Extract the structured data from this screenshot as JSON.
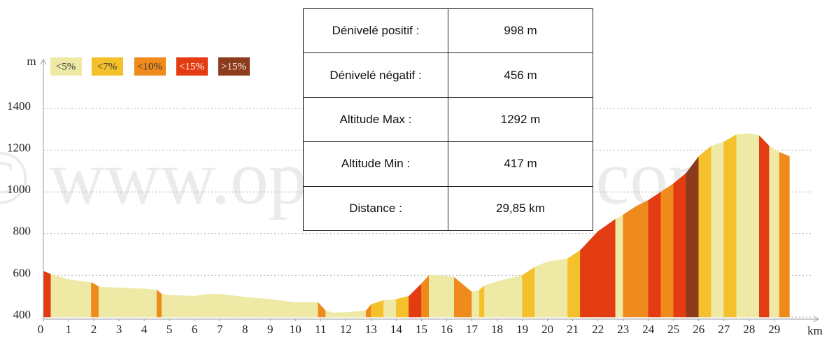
{
  "chart_data": {
    "type": "elevation_profile",
    "watermark": "© www.openrunner.com",
    "x_label": "km",
    "y_label": "m",
    "legend": [
      {
        "name": "<5%",
        "color": "#eeeaa6"
      },
      {
        "name": "<7%",
        "color": "#f4c02c"
      },
      {
        "name": "<10%",
        "color": "#ef8a1c"
      },
      {
        "name": "<15%",
        "color": "#e33b12"
      },
      {
        "name": ">15%",
        "color": "#8c3b1c"
      }
    ],
    "x": [
      0,
      0.3,
      1,
      1.9,
      2,
      2.2,
      3,
      4,
      4.5,
      4.7,
      5,
      6,
      6.5,
      7,
      8,
      9,
      10,
      10.9,
      11.2,
      11.5,
      12,
      12.8,
      13,
      13.5,
      14,
      14.5,
      15,
      15.3,
      15.8,
      16.3,
      16.7,
      17,
      17.3,
      17.5,
      18,
      18.5,
      19,
      19.5,
      20,
      20.8,
      21.3,
      22,
      22.7,
      23,
      23.5,
      24,
      24.5,
      25,
      25.5,
      26,
      26.5,
      27,
      27.5,
      28,
      28.4,
      28.8,
      29.2,
      29.6
    ],
    "elevation": [
      620,
      605,
      580,
      565,
      560,
      545,
      540,
      535,
      530,
      510,
      505,
      500,
      510,
      510,
      495,
      485,
      470,
      470,
      430,
      420,
      422,
      430,
      460,
      480,
      485,
      500,
      560,
      600,
      600,
      590,
      550,
      520,
      530,
      550,
      570,
      585,
      600,
      640,
      665,
      680,
      720,
      810,
      870,
      890,
      930,
      960,
      1000,
      1040,
      1090,
      1170,
      1220,
      1240,
      1275,
      1280,
      1270,
      1220,
      1190,
      1170
    ],
    "segment_grades": [
      3,
      0,
      0,
      2,
      2,
      0,
      0,
      0,
      2,
      0,
      0,
      0,
      0,
      0,
      0,
      0,
      0,
      2,
      0,
      0,
      0,
      2,
      1,
      0,
      1,
      3,
      2,
      0,
      0,
      2,
      2,
      0,
      1,
      0,
      0,
      0,
      1,
      0,
      0,
      1,
      3,
      3,
      0,
      2,
      2,
      3,
      2,
      3,
      4,
      1,
      0,
      1,
      0,
      0,
      3,
      0,
      2
    ],
    "xlim": [
      0,
      30.8
    ],
    "xticks": [
      0,
      1,
      2,
      3,
      4,
      5,
      6,
      7,
      8,
      9,
      10,
      11,
      12,
      13,
      14,
      15,
      16,
      17,
      18,
      19,
      20,
      21,
      22,
      23,
      24,
      25,
      26,
      27,
      28,
      29
    ],
    "ylim": [
      400,
      1635
    ],
    "yticks": [
      400,
      600,
      800,
      1000,
      1200,
      1400
    ],
    "grid": true,
    "stats": [
      [
        "Dénivelé positif :",
        "998 m"
      ],
      [
        "Dénivelé négatif :",
        "456 m"
      ],
      [
        "Altitude Max :",
        "1292 m"
      ],
      [
        "Altitude Min :",
        "417 m"
      ],
      [
        "Distance :",
        "29,85 km"
      ]
    ]
  }
}
